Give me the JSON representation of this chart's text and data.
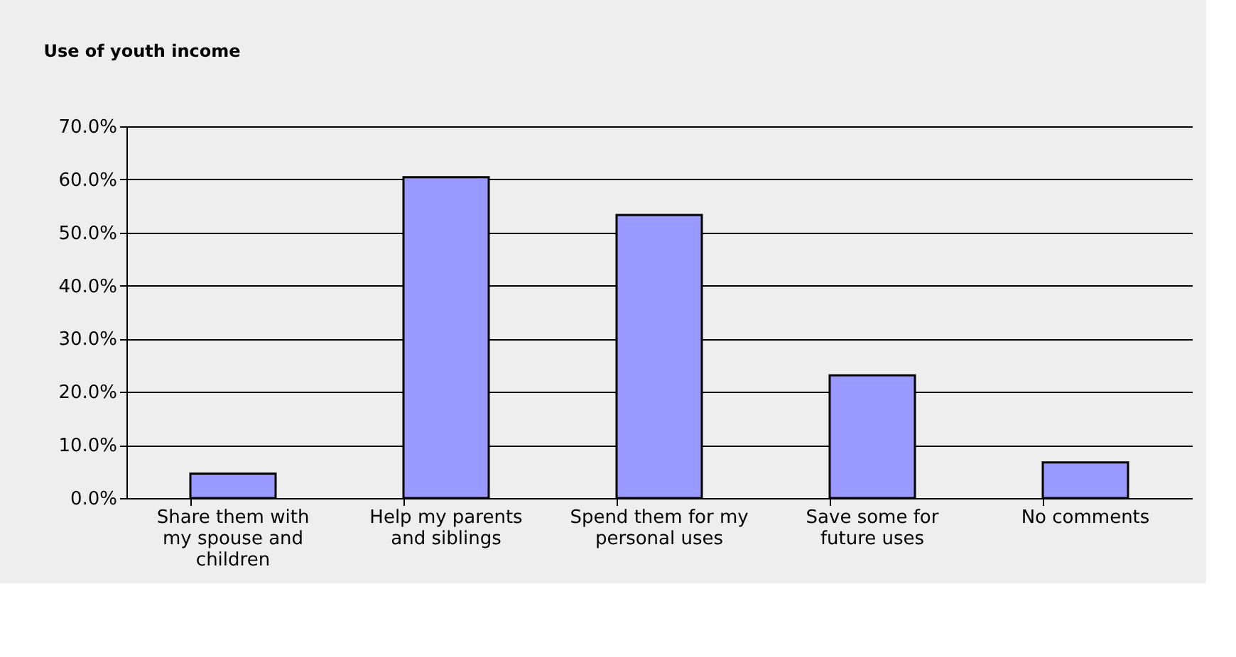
{
  "chart_data": {
    "type": "bar",
    "title": "Use of youth income",
    "categories": [
      "Share them with my spouse and children",
      "Help my parents and siblings",
      "Spend them for my personal uses",
      "Save some for future uses",
      "No comments"
    ],
    "values": [
      4.6,
      60.4,
      53.3,
      23.1,
      6.7
    ],
    "color": "#9999ff",
    "ylim": [
      0,
      70
    ],
    "yticks": [
      {
        "value": 0,
        "label": "0.0%"
      },
      {
        "value": 10,
        "label": "10.0%"
      },
      {
        "value": 20,
        "label": "20.0%"
      },
      {
        "value": 30,
        "label": "30.0%"
      },
      {
        "value": 40,
        "label": "40.0%"
      },
      {
        "value": 50,
        "label": "50.0%"
      },
      {
        "value": 60,
        "label": "60.0%"
      },
      {
        "value": 70,
        "label": "70.0%"
      }
    ],
    "grid": "y"
  }
}
